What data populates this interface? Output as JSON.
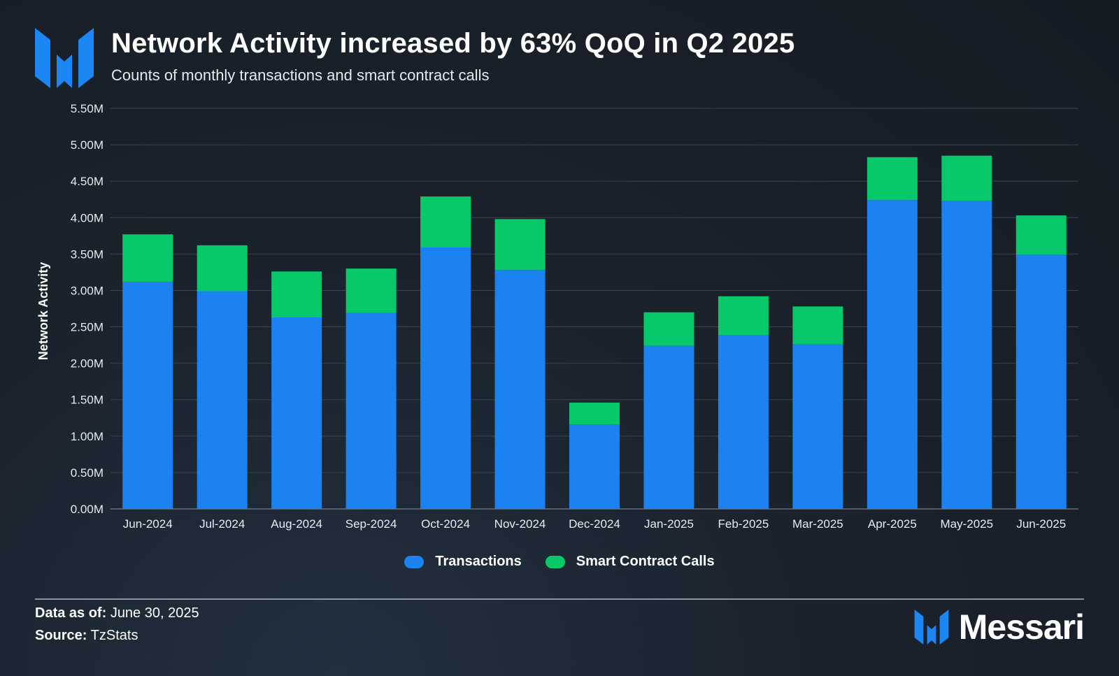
{
  "header": {
    "title": "Network Activity increased by 63% QoQ in Q2 2025",
    "subtitle": "Counts of monthly transactions and smart contract calls"
  },
  "colors": {
    "transactions": "#1c82f2",
    "smart_contract_calls": "#08c96a",
    "gridline": "#3a434e",
    "logo": "#1c86f5"
  },
  "chart_data": {
    "type": "bar",
    "stacked": true,
    "title": "Network Activity increased by 63% QoQ in Q2 2025",
    "subtitle": "Counts of monthly transactions and smart contract calls",
    "xlabel": "",
    "ylabel": "Network Activity",
    "ylim": [
      0,
      5500000
    ],
    "yticks": [
      0,
      500000,
      1000000,
      1500000,
      2000000,
      2500000,
      3000000,
      3500000,
      4000000,
      4500000,
      5000000,
      5500000
    ],
    "ytick_labels": [
      "0.00M",
      "0.50M",
      "1.00M",
      "1.50M",
      "2.00M",
      "2.50M",
      "3.00M",
      "3.50M",
      "4.00M",
      "4.50M",
      "5.00M",
      "5.50M"
    ],
    "grid": true,
    "legend_position": "bottom-center",
    "categories": [
      "Jun-2024",
      "Jul-2024",
      "Aug-2024",
      "Sep-2024",
      "Oct-2024",
      "Nov-2024",
      "Dec-2024",
      "Jan-2025",
      "Feb-2025",
      "Mar-2025",
      "Apr-2025",
      "May-2025",
      "Jun-2025"
    ],
    "series": [
      {
        "name": "Transactions",
        "values": [
          3120000,
          2990000,
          2630000,
          2690000,
          3590000,
          3280000,
          1160000,
          2240000,
          2390000,
          2260000,
          4240000,
          4230000,
          3490000
        ]
      },
      {
        "name": "Smart Contract Calls",
        "values": [
          650000,
          630000,
          630000,
          610000,
          700000,
          700000,
          300000,
          460000,
          530000,
          520000,
          590000,
          620000,
          540000
        ]
      }
    ]
  },
  "legend": {
    "transactions_label": "Transactions",
    "smart_contract_calls_label": "Smart Contract Calls"
  },
  "footer": {
    "date_label": "Data as of:",
    "date_value": "June 30, 2025",
    "source_label": "Source:",
    "source_value": "TzStats",
    "brand_name": "Messari"
  },
  "icons": {
    "header_logo": "messari-logo-icon",
    "brand_logo": "messari-logo-icon"
  }
}
